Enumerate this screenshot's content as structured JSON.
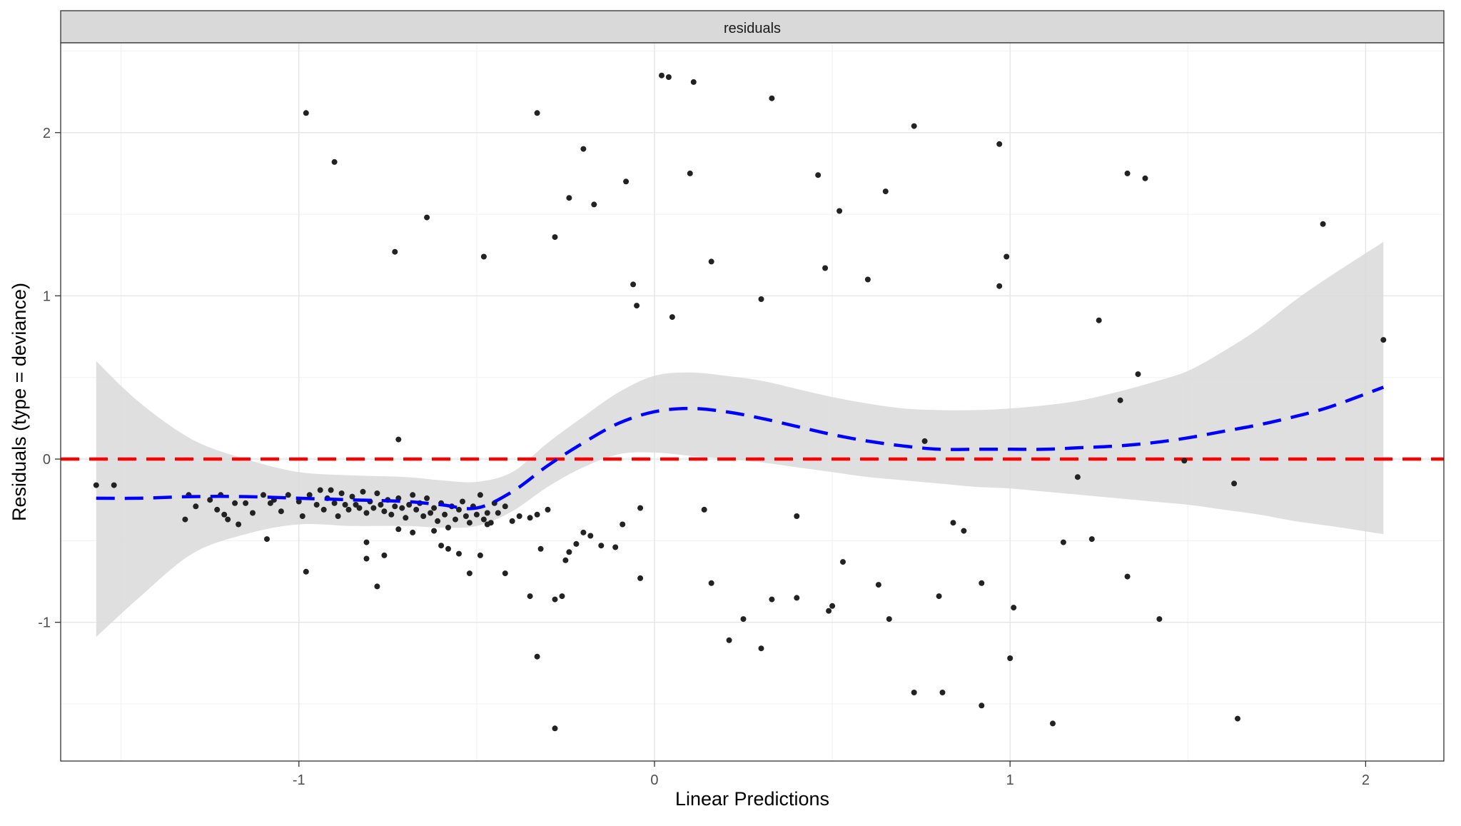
{
  "chart_data": {
    "type": "scatter",
    "facet_label": "residuals",
    "xlabel": "Linear Predictions",
    "ylabel": "Residuals (type = deviance)",
    "xlim": [
      -1.67,
      2.22
    ],
    "ylim": [
      -1.85,
      2.55
    ],
    "x_ticks": [
      -1,
      0,
      1,
      2
    ],
    "x_tick_labels": [
      "-1",
      "0",
      "1",
      "2"
    ],
    "y_ticks": [
      -1,
      0,
      1,
      2
    ],
    "y_tick_labels": [
      "-1",
      "0",
      "1",
      "2"
    ],
    "grid": true,
    "reference_line": {
      "y": 0,
      "color": "#ff0000",
      "style": "dashed"
    },
    "smooth_color": "#0000ff",
    "ribbon_color": "#d9d9d9",
    "point_color": "#222222",
    "points": [
      [
        -1.57,
        -0.16
      ],
      [
        -1.52,
        -0.16
      ],
      [
        -1.31,
        -0.22
      ],
      [
        -1.32,
        -0.37
      ],
      [
        -1.29,
        -0.29
      ],
      [
        -1.25,
        -0.25
      ],
      [
        -1.22,
        -0.22
      ],
      [
        -1.23,
        -0.31
      ],
      [
        -1.21,
        -0.34
      ],
      [
        -1.2,
        -0.37
      ],
      [
        -1.18,
        -0.27
      ],
      [
        -1.17,
        -0.4
      ],
      [
        -1.15,
        -0.27
      ],
      [
        -1.13,
        -0.33
      ],
      [
        -1.1,
        -0.22
      ],
      [
        -1.08,
        -0.27
      ],
      [
        -1.07,
        -0.25
      ],
      [
        -1.05,
        -0.32
      ],
      [
        -1.03,
        -0.22
      ],
      [
        -1.0,
        -0.26
      ],
      [
        -0.99,
        -0.35
      ],
      [
        -0.97,
        -0.22
      ],
      [
        -0.95,
        -0.28
      ],
      [
        -0.94,
        -0.19
      ],
      [
        -0.93,
        -0.31
      ],
      [
        -0.92,
        -0.24
      ],
      [
        -0.91,
        -0.19
      ],
      [
        -0.9,
        -0.27
      ],
      [
        -0.89,
        -0.35
      ],
      [
        -0.88,
        -0.21
      ],
      [
        -0.87,
        -0.28
      ],
      [
        -0.86,
        -0.31
      ],
      [
        -0.85,
        -0.23
      ],
      [
        -0.84,
        -0.28
      ],
      [
        -0.83,
        -0.3
      ],
      [
        -0.82,
        -0.2
      ],
      [
        -0.81,
        -0.33
      ],
      [
        -0.8,
        -0.26
      ],
      [
        -0.79,
        -0.3
      ],
      [
        -0.78,
        -0.21
      ],
      [
        -0.77,
        -0.28
      ],
      [
        -0.76,
        -0.32
      ],
      [
        -0.75,
        -0.25
      ],
      [
        -0.74,
        -0.34
      ],
      [
        -0.73,
        -0.29
      ],
      [
        -0.72,
        -0.24
      ],
      [
        -0.71,
        -0.3
      ],
      [
        -0.7,
        -0.36
      ],
      [
        -0.69,
        -0.28
      ],
      [
        -0.68,
        -0.22
      ],
      [
        -0.67,
        -0.31
      ],
      [
        -0.66,
        -0.27
      ],
      [
        -0.65,
        -0.35
      ],
      [
        -0.64,
        -0.24
      ],
      [
        -0.63,
        -0.33
      ],
      [
        -0.62,
        -0.3
      ],
      [
        -0.61,
        -0.38
      ],
      [
        -0.6,
        -0.27
      ],
      [
        -0.59,
        -0.34
      ],
      [
        -0.58,
        -0.42
      ],
      [
        -0.57,
        -0.29
      ],
      [
        -0.56,
        -0.37
      ],
      [
        -0.55,
        -0.31
      ],
      [
        -0.54,
        -0.26
      ],
      [
        -0.53,
        -0.35
      ],
      [
        -0.52,
        -0.39
      ],
      [
        -0.51,
        -0.29
      ],
      [
        -0.5,
        -0.34
      ],
      [
        -0.49,
        -0.22
      ],
      [
        -0.48,
        -0.37
      ],
      [
        -0.47,
        -0.33
      ],
      [
        -0.46,
        -0.39
      ],
      [
        -0.45,
        -0.27
      ],
      [
        -0.44,
        -0.33
      ],
      [
        -0.42,
        -0.29
      ],
      [
        -0.4,
        -0.38
      ],
      [
        -0.38,
        -0.35
      ],
      [
        -0.35,
        -0.36
      ],
      [
        -0.33,
        -0.34
      ],
      [
        -0.3,
        -0.31
      ],
      [
        -1.09,
        -0.49
      ],
      [
        -0.98,
        -0.69
      ],
      [
        -0.81,
        -0.61
      ],
      [
        -0.81,
        -0.51
      ],
      [
        -0.78,
        -0.78
      ],
      [
        -0.76,
        -0.59
      ],
      [
        -0.72,
        -0.43
      ],
      [
        -0.68,
        -0.45
      ],
      [
        -0.62,
        -0.44
      ],
      [
        -0.6,
        -0.53
      ],
      [
        -0.58,
        -0.55
      ],
      [
        -0.55,
        -0.58
      ],
      [
        -0.52,
        -0.7
      ],
      [
        -0.49,
        -0.59
      ],
      [
        -0.47,
        -0.4
      ],
      [
        -0.42,
        -0.7
      ],
      [
        -0.35,
        -0.84
      ],
      [
        -0.32,
        -0.55
      ],
      [
        -0.28,
        -0.86
      ],
      [
        -0.26,
        -0.84
      ],
      [
        -0.25,
        -0.62
      ],
      [
        -0.24,
        -0.57
      ],
      [
        -0.22,
        -0.52
      ],
      [
        -0.2,
        -0.45
      ],
      [
        -0.18,
        -0.47
      ],
      [
        -0.15,
        -0.53
      ],
      [
        -0.11,
        -0.54
      ],
      [
        -0.09,
        -0.4
      ],
      [
        -0.04,
        -0.3
      ],
      [
        -0.04,
        -0.73
      ],
      [
        -0.33,
        -1.21
      ],
      [
        -0.28,
        -1.65
      ],
      [
        -0.28,
        1.36
      ],
      [
        -0.24,
        1.6
      ],
      [
        -0.17,
        1.56
      ],
      [
        -0.08,
        1.7
      ],
      [
        -0.2,
        1.9
      ],
      [
        -0.33,
        2.12
      ],
      [
        -0.48,
        1.24
      ],
      [
        -0.64,
        1.48
      ],
      [
        -0.73,
        1.27
      ],
      [
        -0.9,
        1.82
      ],
      [
        -0.98,
        2.12
      ],
      [
        -0.72,
        0.12
      ],
      [
        -0.06,
        1.07
      ],
      [
        -0.05,
        0.94
      ],
      [
        0.02,
        2.35
      ],
      [
        0.04,
        2.34
      ],
      [
        0.11,
        2.31
      ],
      [
        0.1,
        1.75
      ],
      [
        0.05,
        0.87
      ],
      [
        0.16,
        1.21
      ],
      [
        0.33,
        2.21
      ],
      [
        0.3,
        0.98
      ],
      [
        0.46,
        1.74
      ],
      [
        0.48,
        1.17
      ],
      [
        0.52,
        1.52
      ],
      [
        0.6,
        1.1
      ],
      [
        0.65,
        1.64
      ],
      [
        0.73,
        2.04
      ],
      [
        0.76,
        0.11
      ],
      [
        0.97,
        1.93
      ],
      [
        0.99,
        1.24
      ],
      [
        0.97,
        1.06
      ],
      [
        1.25,
        0.85
      ],
      [
        1.36,
        0.52
      ],
      [
        1.33,
        1.75
      ],
      [
        1.38,
        1.72
      ],
      [
        1.31,
        0.36
      ],
      [
        1.88,
        1.44
      ],
      [
        2.05,
        0.73
      ],
      [
        1.19,
        -0.11
      ],
      [
        1.49,
        -0.01
      ],
      [
        1.63,
        -0.15
      ],
      [
        0.14,
        -0.31
      ],
      [
        0.16,
        -0.76
      ],
      [
        0.25,
        -0.98
      ],
      [
        0.21,
        -1.11
      ],
      [
        0.3,
        -1.16
      ],
      [
        0.33,
        -0.86
      ],
      [
        0.4,
        -0.35
      ],
      [
        0.4,
        -0.85
      ],
      [
        0.49,
        -0.93
      ],
      [
        0.5,
        -0.9
      ],
      [
        0.53,
        -0.63
      ],
      [
        0.63,
        -0.77
      ],
      [
        0.66,
        -0.98
      ],
      [
        0.73,
        -1.43
      ],
      [
        0.8,
        -0.84
      ],
      [
        0.81,
        -1.43
      ],
      [
        0.84,
        -0.39
      ],
      [
        0.87,
        -0.44
      ],
      [
        0.92,
        -0.76
      ],
      [
        0.92,
        -1.51
      ],
      [
        1.01,
        -0.91
      ],
      [
        1.0,
        -1.22
      ],
      [
        1.12,
        -1.62
      ],
      [
        1.15,
        -0.51
      ],
      [
        1.23,
        -0.49
      ],
      [
        1.33,
        -0.72
      ],
      [
        1.42,
        -0.98
      ],
      [
        1.64,
        -1.59
      ]
    ],
    "smooth": {
      "x": [
        -1.57,
        -1.45,
        -1.3,
        -1.15,
        -1.0,
        -0.85,
        -0.7,
        -0.6,
        -0.5,
        -0.4,
        -0.3,
        -0.2,
        -0.1,
        0.0,
        0.1,
        0.2,
        0.3,
        0.4,
        0.5,
        0.6,
        0.7,
        0.8,
        0.9,
        1.0,
        1.1,
        1.2,
        1.3,
        1.4,
        1.5,
        1.6,
        1.7,
        1.8,
        1.9,
        2.05
      ],
      "y": [
        -0.24,
        -0.24,
        -0.23,
        -0.23,
        -0.24,
        -0.25,
        -0.26,
        -0.28,
        -0.3,
        -0.2,
        -0.04,
        0.1,
        0.22,
        0.29,
        0.31,
        0.29,
        0.25,
        0.2,
        0.15,
        0.11,
        0.08,
        0.06,
        0.06,
        0.06,
        0.06,
        0.07,
        0.08,
        0.1,
        0.13,
        0.17,
        0.21,
        0.26,
        0.32,
        0.44
      ],
      "lower": [
        -1.09,
        -0.85,
        -0.58,
        -0.46,
        -0.4,
        -0.41,
        -0.41,
        -0.42,
        -0.41,
        -0.32,
        -0.17,
        -0.05,
        0.03,
        0.04,
        0.02,
        0.0,
        -0.02,
        -0.05,
        -0.08,
        -0.11,
        -0.13,
        -0.15,
        -0.17,
        -0.18,
        -0.2,
        -0.22,
        -0.24,
        -0.26,
        -0.28,
        -0.31,
        -0.34,
        -0.38,
        -0.41,
        -0.46
      ],
      "upper": [
        0.6,
        0.35,
        0.12,
        0.0,
        -0.08,
        -0.1,
        -0.11,
        -0.13,
        -0.14,
        -0.08,
        0.1,
        0.26,
        0.41,
        0.51,
        0.53,
        0.51,
        0.48,
        0.43,
        0.38,
        0.34,
        0.31,
        0.3,
        0.3,
        0.31,
        0.33,
        0.36,
        0.41,
        0.47,
        0.54,
        0.66,
        0.8,
        0.97,
        1.12,
        1.33
      ]
    }
  }
}
